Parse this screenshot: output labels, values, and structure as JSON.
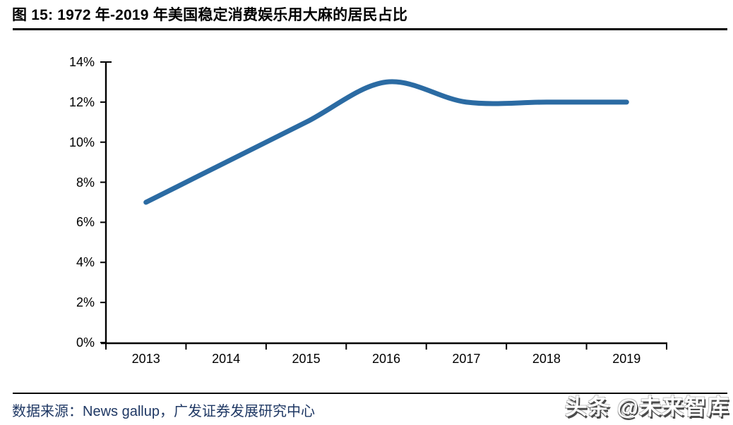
{
  "header": {
    "title": "图 15:  1972 年-2019 年美国稳定消费娱乐用大麻的居民占比"
  },
  "chart_data": {
    "type": "line",
    "title": "1972 年-2019 年美国稳定消费娱乐用大麻的居民占比",
    "categories": [
      "2013",
      "2014",
      "2015",
      "2016",
      "2017",
      "2018",
      "2019"
    ],
    "values": [
      7,
      9,
      11,
      13,
      12,
      12,
      12
    ],
    "unit": "%",
    "xlabel": "",
    "ylabel": "",
    "ylim": [
      0,
      14
    ],
    "y_tick_step": 2,
    "y_tick_labels": [
      "0%",
      "2%",
      "4%",
      "6%",
      "8%",
      "10%",
      "12%",
      "14%"
    ],
    "grid": false,
    "legend_position": "none",
    "smooth": true,
    "line_color": "#2B6BA3",
    "axis_color": "#000000"
  },
  "source": {
    "label": "数据来源：",
    "text": "News gallup，广发证券发展研究中心",
    "color": "#1F3864"
  },
  "watermark": {
    "text": "头条 @未来智库"
  }
}
